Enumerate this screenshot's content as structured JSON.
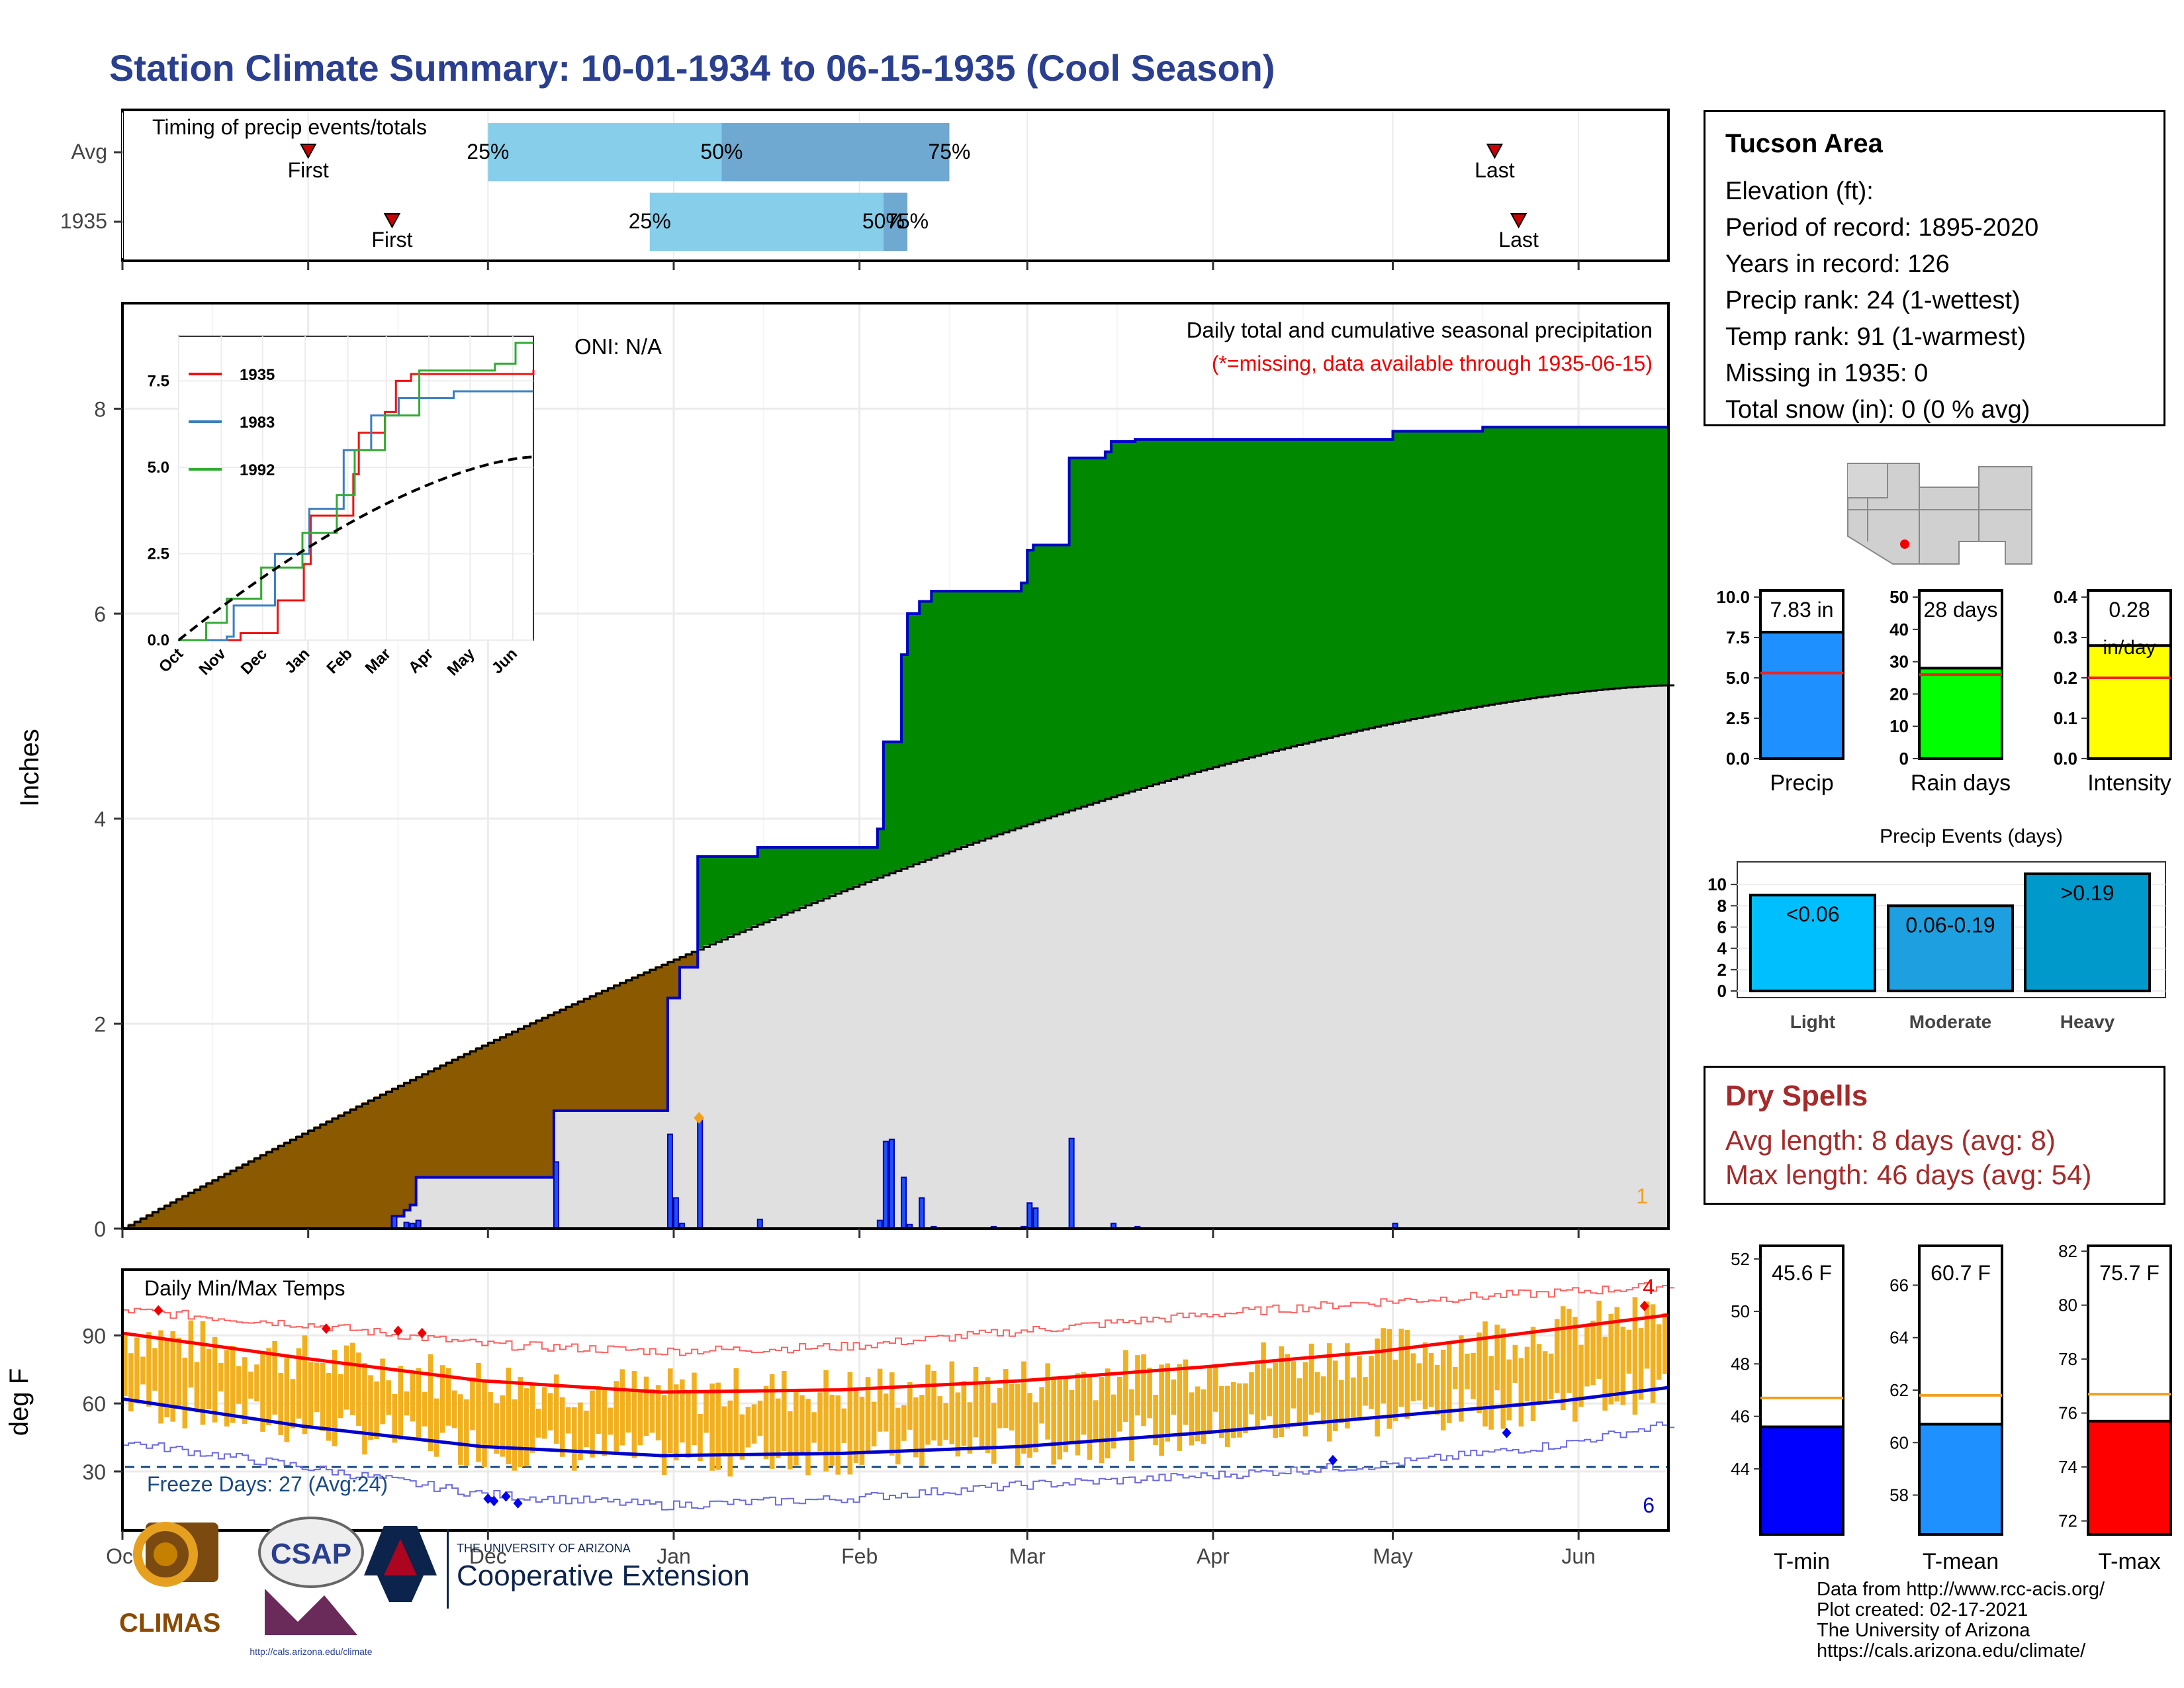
{
  "title": "Station Climate Summary: 10-01-1934 to 06-15-1935 (Cool Season)",
  "timing": {
    "label": "Timing of precip events/totals",
    "rows": [
      {
        "name": "Avg",
        "first": "Nov-01",
        "p25": "Dec-01",
        "p50": "Jan-09",
        "p75": "Feb-16",
        "last": "May-18"
      },
      {
        "name": "1935",
        "first": "Nov-15",
        "p25": "Dec-28",
        "p50": "Feb-05",
        "p75": "Feb-09",
        "last": "May-22"
      }
    ],
    "first_label": "First",
    "last_label": "Last",
    "p25_label": "25%",
    "p50_label": "50%",
    "p75_label": "75%",
    "colors": {
      "light": "#87ceeb",
      "dark": "#6fa8d0",
      "marker": "#cc0000"
    }
  },
  "precip_chart": {
    "heading": "Daily total and cumulative seasonal precipitation",
    "subheading": "(*=missing, data available through 1935-06-15)",
    "oni": "ONI: N/A",
    "ylabel": "Inches",
    "yticks": [
      "0",
      "2",
      "4",
      "6",
      "8"
    ],
    "corner_count": "1",
    "colors": {
      "above": "#008800",
      "below": "#8b5a00",
      "avg": "#e0e0e0",
      "line": "#0000cc",
      "daily": "#1f4fff"
    }
  },
  "inset": {
    "yticks": [
      "0.0",
      "2.5",
      "5.0",
      "7.5"
    ],
    "xticks": [
      "Oct",
      "Nov",
      "Dec",
      "Jan",
      "Feb",
      "Mar",
      "Apr",
      "May",
      "Jun"
    ],
    "legend": [
      {
        "name": "1935",
        "color": "#ee1111"
      },
      {
        "name": "1983",
        "color": "#3a7fc1"
      },
      {
        "name": "1992",
        "color": "#33aa33"
      }
    ]
  },
  "temp_chart": {
    "heading": "Daily Min/Max Temps",
    "ylabel": "deg F",
    "yticks": [
      "30",
      "60",
      "90"
    ],
    "freeze": "Freeze Days: 27 (Avg:24)",
    "max_records": "4",
    "min_records": "6",
    "colors": {
      "bar": "#f0b020",
      "avg_max": "#ff0000",
      "avg_min": "#0000cc"
    }
  },
  "months": [
    "Oct",
    "Nov",
    "Dec",
    "Jan",
    "Feb",
    "Mar",
    "Apr",
    "May",
    "Jun"
  ],
  "info": {
    "station": "Tucson Area",
    "lines": [
      "Elevation (ft):",
      "Period of record: 1895-2020",
      "Years in record: 126",
      "Precip rank: 24 (1-wettest)",
      "Temp rank: 91 (1-warmest)",
      "Missing in 1935: 0",
      "Total snow (in): 0 (0 % avg)"
    ]
  },
  "mini_bars": [
    {
      "label": "Precip",
      "value_text": "7.83 in",
      "value": 7.83,
      "avg": 5.3,
      "ymax": 10,
      "yticks": [
        "0.0",
        "2.5",
        "5.0",
        "7.5",
        "10.0"
      ],
      "color": "#1e90ff"
    },
    {
      "label": "Rain days",
      "value_text": "28 days",
      "value": 28,
      "avg": 26,
      "ymax": 50,
      "yticks": [
        "0",
        "10",
        "20",
        "30",
        "40",
        "50"
      ],
      "color": "#00ff00"
    },
    {
      "label": "Intensity",
      "value_text": "0.28",
      "value_text2": "in/day",
      "value": 0.28,
      "avg": 0.2,
      "ymax": 0.4,
      "yticks": [
        "0.0",
        "0.1",
        "0.2",
        "0.3",
        "0.4"
      ],
      "color": "#ffff00"
    }
  ],
  "events": {
    "title": "Precip Events (days)",
    "yticks": [
      "0",
      "2",
      "4",
      "6",
      "8",
      "10"
    ],
    "bars": [
      {
        "label": "Light",
        "text": "<0.06",
        "value": 9,
        "color": "#00bfff"
      },
      {
        "label": "Moderate",
        "text": "0.06-0.19",
        "value": 8,
        "color": "#1ea0e0"
      },
      {
        "label": "Heavy",
        "text": ">0.19",
        "value": 11,
        "color": "#0099cc"
      }
    ]
  },
  "dry_spells": {
    "title": "Dry Spells",
    "avg": "Avg length: 8 days (avg: 8)",
    "max": "Max length: 46 days (avg: 54)"
  },
  "temp_bars": [
    {
      "label": "T-min",
      "value_text": "45.6 F",
      "value": 45.6,
      "avg": 46.7,
      "ymin": 41.5,
      "ymax": 52.5,
      "yticks": [
        "44",
        "46",
        "48",
        "50",
        "52"
      ],
      "color": "#0000ff"
    },
    {
      "label": "T-mean",
      "value_text": "60.7 F",
      "value": 60.7,
      "avg": 61.8,
      "ymin": 56.5,
      "ymax": 67.5,
      "yticks": [
        "58",
        "60",
        "62",
        "64",
        "66"
      ],
      "color": "#1e90ff"
    },
    {
      "label": "T-max",
      "value_text": "75.7 F",
      "value": 75.7,
      "avg": 76.7,
      "ymin": 71.5,
      "ymax": 82.2,
      "yticks": [
        "72",
        "74",
        "76",
        "78",
        "80",
        "82"
      ],
      "color": "#ff0000"
    }
  ],
  "credits": [
    "Data from http://www.rcc-acis.org/",
    "Plot created: 02-17-2021",
    "The University of Arizona",
    "https://cals.arizona.edu/climate/"
  ],
  "logos": {
    "climas": "CLIMAS",
    "csap": "CSAP",
    "csap_url": "http://cals.arizona.edu/climate",
    "ua_small": "THE UNIVERSITY OF ARIZONA",
    "ua_big": "Cooperative Extension"
  }
}
